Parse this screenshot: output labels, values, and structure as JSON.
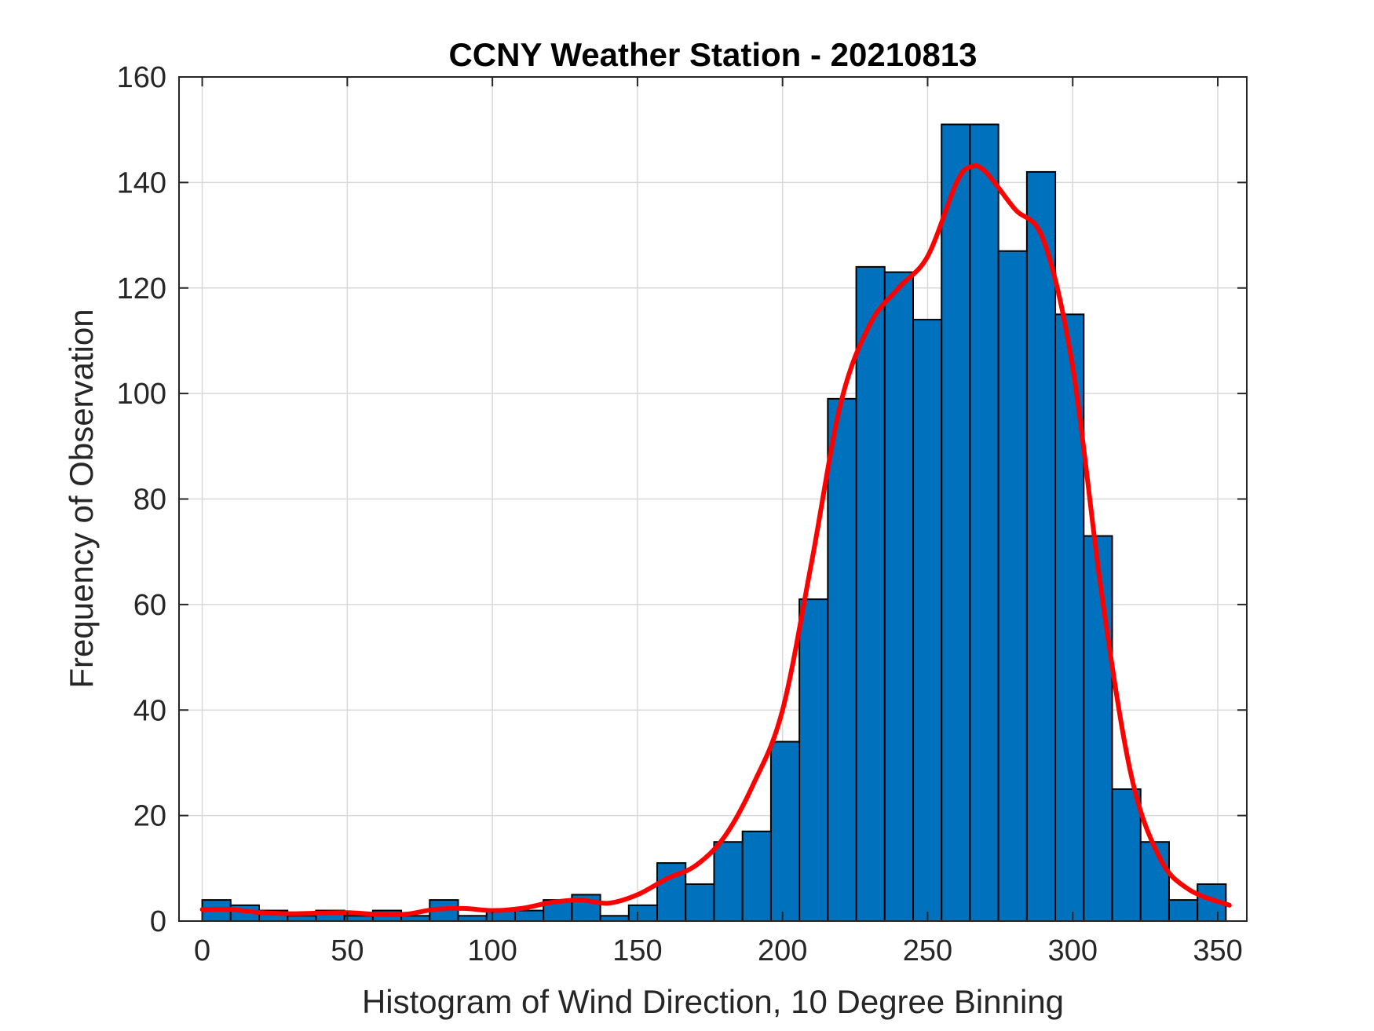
{
  "chart_data": {
    "type": "bar",
    "title": "CCNY Weather Station - 20210813",
    "xlabel": "Histogram of Wind Direction, 10 Degree Binning",
    "ylabel": "Frequency of Observation",
    "xlim": [
      -8,
      360
    ],
    "ylim": [
      0,
      160
    ],
    "xticks": [
      0,
      50,
      100,
      150,
      200,
      250,
      300,
      350
    ],
    "yticks": [
      0,
      20,
      40,
      60,
      80,
      100,
      120,
      140,
      160
    ],
    "grid": true,
    "bin_width": 9.8,
    "bin_edges_start": 0,
    "bar_color": "#0072BD",
    "line_color": "#FF0000",
    "series": [
      {
        "name": "counts",
        "values": [
          4,
          3,
          2,
          1,
          2,
          1,
          2,
          1,
          4,
          1,
          2,
          2,
          4,
          5,
          1,
          3,
          11,
          7,
          15,
          17,
          34,
          61,
          99,
          124,
          123,
          114,
          151,
          151,
          127,
          142,
          115,
          73,
          25,
          15,
          4,
          7
        ]
      },
      {
        "name": "density_fit",
        "x": [
          0,
          10,
          20,
          30,
          40,
          50,
          60,
          70,
          80,
          90,
          100,
          110,
          120,
          130,
          140,
          150,
          160,
          170,
          180,
          190,
          200,
          210,
          220,
          230,
          240,
          250,
          260,
          265,
          270,
          280,
          290,
          300,
          310,
          320,
          330,
          340,
          354
        ],
        "values": [
          2.2,
          2.2,
          1.6,
          1.4,
          1.5,
          1.6,
          1.3,
          1.3,
          2.2,
          2.4,
          2.0,
          2.4,
          3.5,
          4.0,
          3.4,
          5.0,
          8.0,
          10.5,
          16,
          26,
          40,
          68,
          98,
          113,
          120,
          126,
          140,
          143,
          142,
          135,
          129,
          105,
          62,
          28,
          12,
          6,
          3
        ]
      }
    ]
  }
}
